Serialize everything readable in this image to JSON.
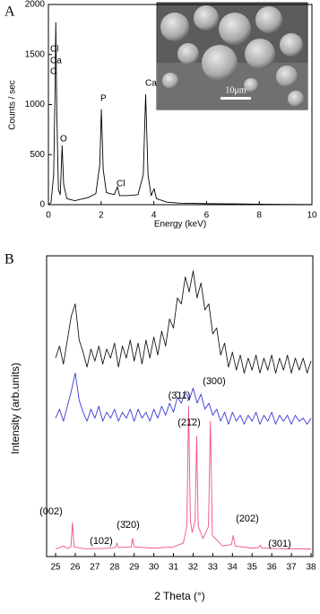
{
  "chart_data": [
    {
      "type": "line",
      "panel_label": "A",
      "x_label": "Energy (keV)",
      "y_label": "Counts / sec",
      "color": "#000000",
      "xlim": [
        0,
        10
      ],
      "xticks": [
        0,
        2,
        4,
        6,
        8,
        10
      ],
      "ylim": [
        0,
        2000
      ],
      "yticks": [
        0,
        500,
        1000,
        1500,
        2000
      ],
      "x": [
        0,
        0.1,
        0.2,
        0.25,
        0.28,
        0.32,
        0.38,
        0.45,
        0.52,
        0.58,
        0.7,
        1.0,
        1.5,
        1.8,
        1.95,
        2.01,
        2.08,
        2.2,
        2.5,
        2.62,
        2.7,
        3.0,
        3.4,
        3.6,
        3.69,
        3.78,
        3.9,
        4.01,
        4.1,
        4.5,
        5,
        6,
        7,
        8,
        9,
        10
      ],
      "values": [
        0,
        20,
        300,
        1100,
        1820,
        900,
        150,
        100,
        590,
        200,
        60,
        40,
        70,
        110,
        400,
        950,
        350,
        120,
        100,
        180,
        90,
        90,
        100,
        300,
        1100,
        300,
        90,
        160,
        60,
        25,
        15,
        10,
        8,
        5,
        3,
        2
      ],
      "annotations": [
        "Cl",
        "Ca",
        "C",
        "O",
        "P",
        "Cl",
        "Ca"
      ],
      "inset_scale_label": "10μm"
    },
    {
      "type": "line",
      "panel_label": "B",
      "x_label": "2 Theta (°)",
      "y_label": "Intensity (arb.units)",
      "xlim": [
        25,
        38
      ],
      "xticks": [
        25,
        26,
        27,
        28,
        29,
        30,
        31,
        32,
        33,
        34,
        35,
        36,
        37,
        38
      ],
      "ylim": [
        0,
        100
      ],
      "x": [
        25.0,
        25.2,
        25.4,
        25.6,
        25.8,
        26.0,
        26.2,
        26.4,
        26.6,
        26.8,
        27.0,
        27.2,
        27.4,
        27.6,
        27.8,
        28.0,
        28.2,
        28.4,
        28.6,
        28.8,
        29.0,
        29.2,
        29.4,
        29.6,
        29.8,
        30.0,
        30.2,
        30.4,
        30.6,
        30.8,
        31.0,
        31.2,
        31.4,
        31.6,
        31.8,
        32.0,
        32.2,
        32.4,
        32.6,
        32.8,
        33.0,
        33.2,
        33.4,
        33.6,
        33.8,
        34.0,
        34.2,
        34.4,
        34.6,
        34.8,
        35.0,
        35.2,
        35.4,
        35.6,
        35.8,
        36.0,
        36.2,
        36.4,
        36.6,
        36.8,
        37.0,
        37.2,
        37.4,
        37.6,
        37.8,
        38.0
      ],
      "series": [
        {
          "color": "#1a1a1a",
          "values": [
            66,
            70,
            64,
            72,
            80,
            84,
            72,
            68,
            63,
            69,
            65,
            70,
            64,
            69,
            66,
            71,
            63,
            70,
            66,
            72,
            65,
            71,
            64,
            72,
            66,
            73,
            67,
            75,
            70,
            79,
            76,
            86,
            84,
            93,
            88,
            95,
            86,
            91,
            82,
            84,
            74,
            76,
            67,
            71,
            63,
            68,
            62,
            67,
            61,
            66,
            62,
            67,
            61,
            66,
            62,
            67,
            61,
            66,
            62,
            67,
            61,
            66,
            62,
            66,
            61,
            65
          ]
        },
        {
          "color": "#3a3ad8",
          "values": [
            46,
            49,
            45,
            50,
            55,
            61,
            52,
            48,
            45,
            49,
            46,
            50,
            45,
            48,
            46,
            49,
            45,
            48,
            46,
            49,
            45,
            49,
            46,
            48,
            45,
            49,
            46,
            50,
            47,
            51,
            48,
            53,
            51,
            55,
            52,
            56,
            51,
            54,
            49,
            51,
            47,
            49,
            45,
            48,
            44,
            48,
            45,
            47,
            44,
            47,
            45,
            48,
            44,
            47,
            45,
            48,
            44,
            47,
            45,
            47,
            44,
            47,
            45,
            46,
            44,
            46
          ]
        },
        {
          "color": "#f0508a",
          "x": [
            25.0,
            25.4,
            25.6,
            25.78,
            25.86,
            25.94,
            26.5,
            27.5,
            28.05,
            28.12,
            28.2,
            28.85,
            28.92,
            29.0,
            30,
            31,
            31.5,
            31.68,
            31.77,
            31.86,
            31.95,
            32.1,
            32.18,
            32.26,
            32.5,
            32.78,
            32.88,
            32.98,
            33.5,
            33.95,
            34.04,
            34.14,
            35.0,
            35.35,
            35.42,
            35.5,
            36.5,
            38
          ],
          "values": [
            2.5,
            3.5,
            2.7,
            3.2,
            11.3,
            3.2,
            2.6,
            2.7,
            3,
            4.5,
            3,
            3.2,
            6,
            3.2,
            2.8,
            3.2,
            4.5,
            10,
            50,
            12,
            8,
            12,
            40,
            10,
            6,
            10,
            45,
            7,
            3.5,
            4,
            7,
            3.5,
            2.8,
            3,
            3.8,
            2.8,
            2.6,
            2.5
          ]
        }
      ],
      "annotations": [
        "(002)",
        "(102)",
        "(3̄20)",
        "(3̄11)",
        "(300)",
        "(21̄2)",
        "(202)",
        "(301)"
      ]
    }
  ]
}
